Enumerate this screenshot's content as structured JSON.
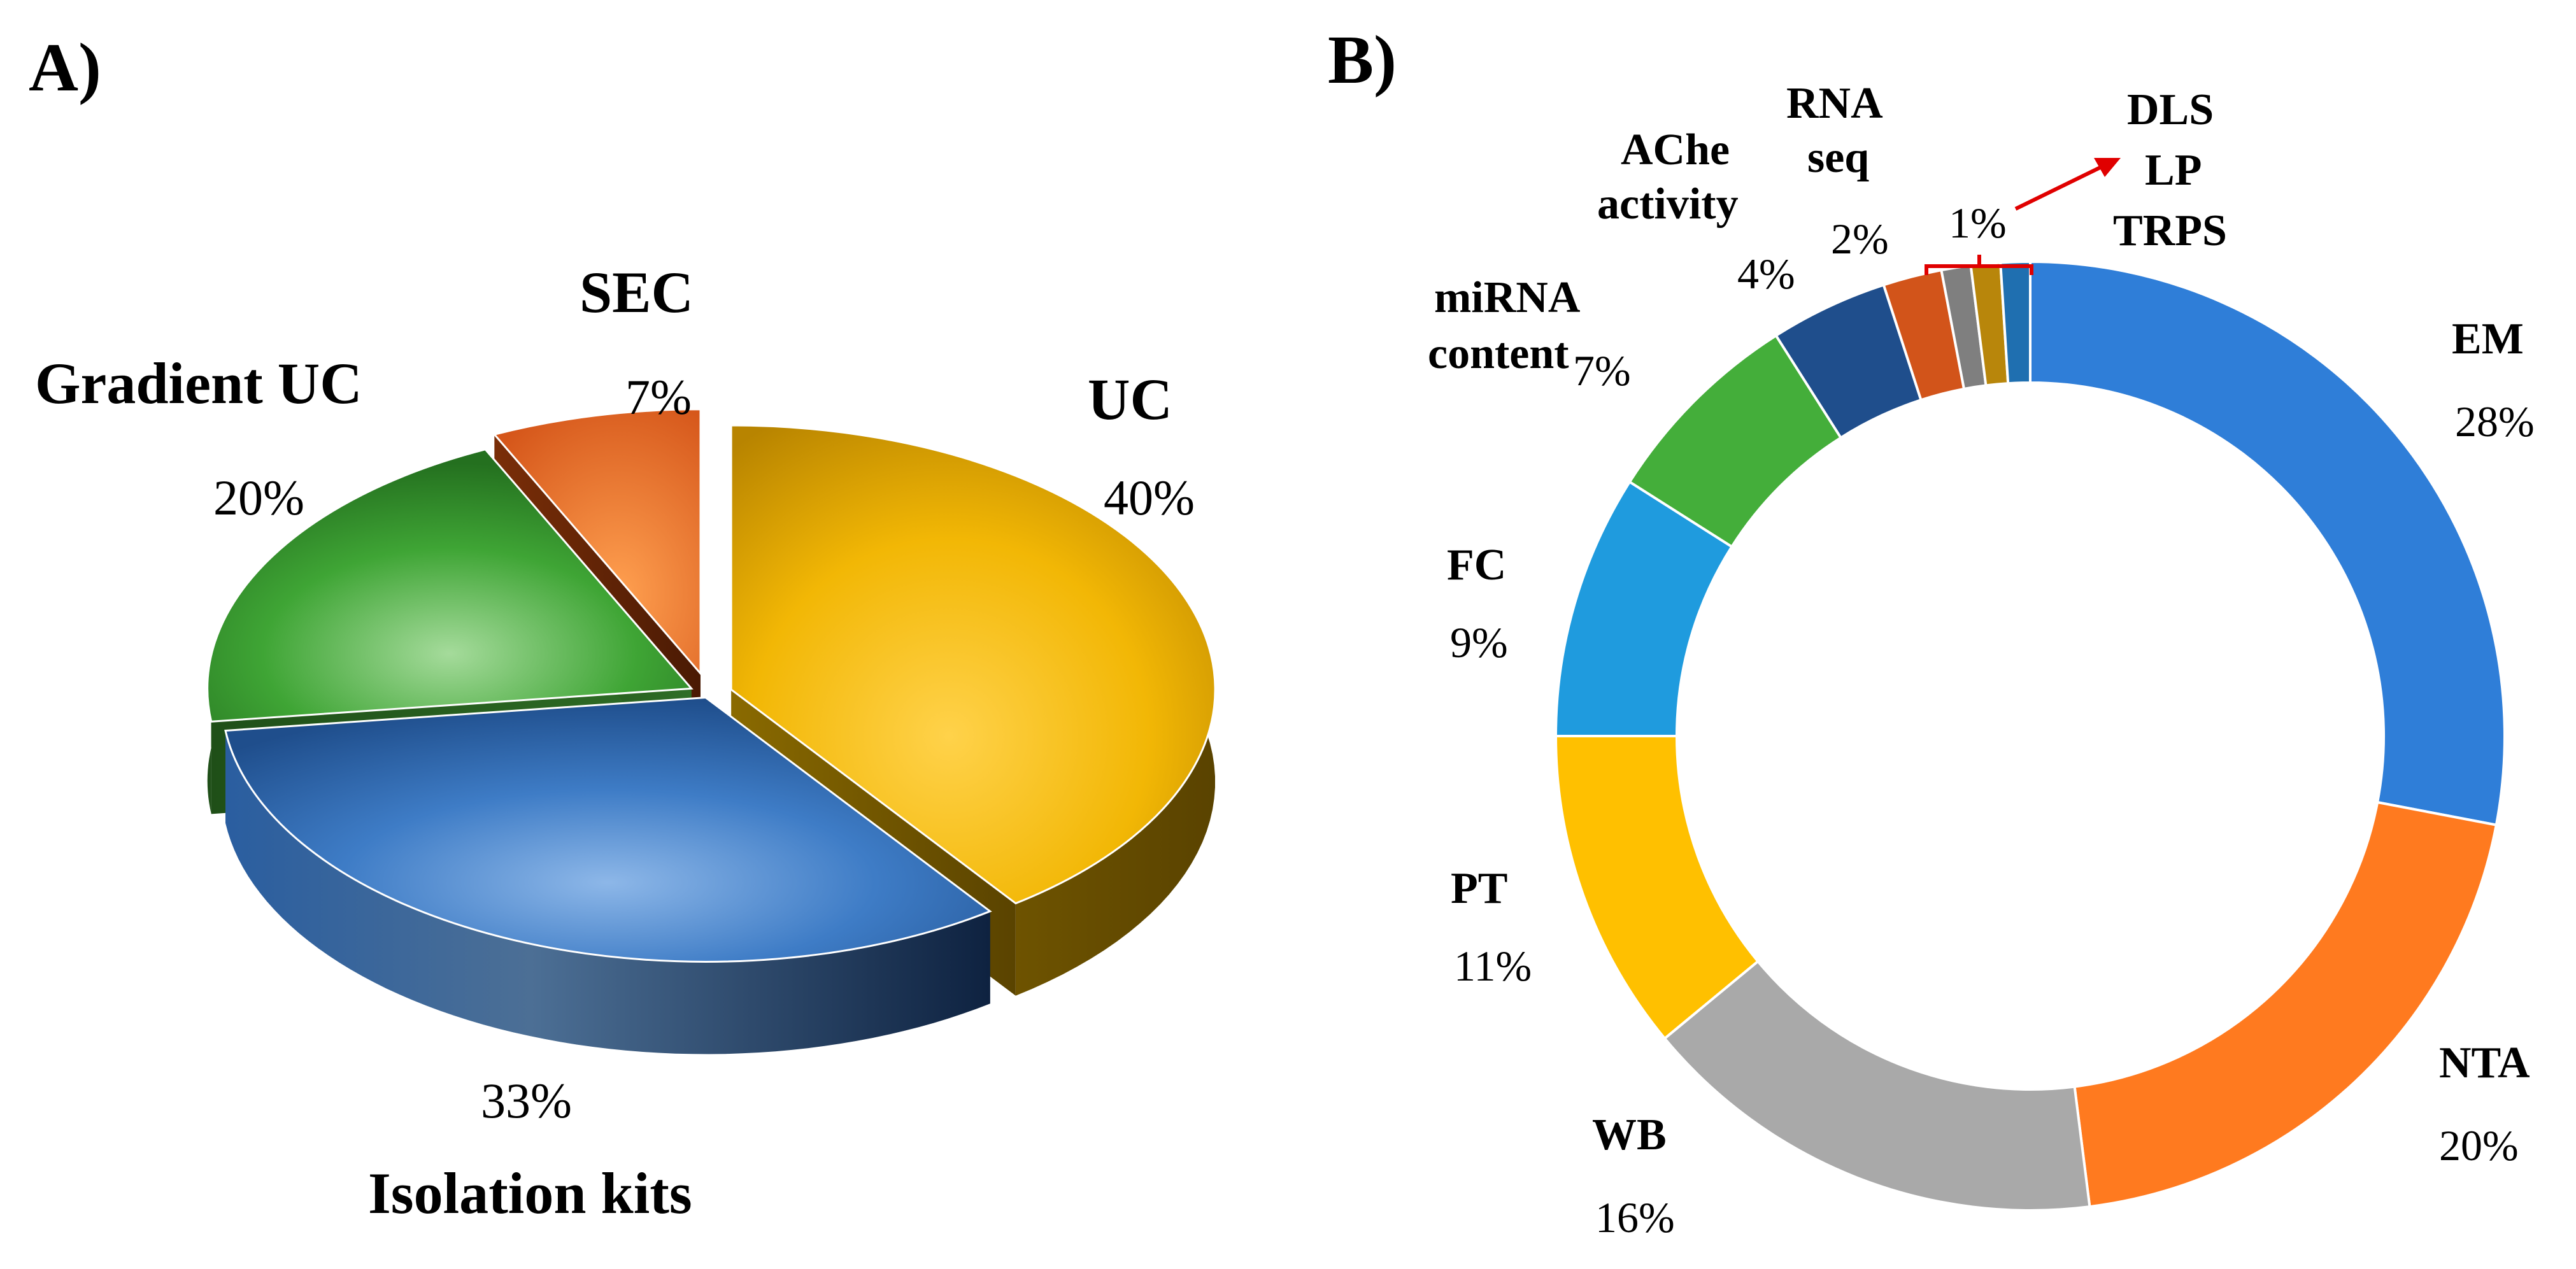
{
  "chart_data": [
    {
      "panel_label": "A)",
      "type": "pie",
      "title": "",
      "slices": [
        {
          "label": "UC",
          "value": 40,
          "display": "40%",
          "color": "#F2B705"
        },
        {
          "label": "Isolation kits",
          "value": 33,
          "display": "33%",
          "color": "#2E6DB8"
        },
        {
          "label": "Gradient UC",
          "value": 20,
          "display": "20%",
          "color": "#3FA535"
        },
        {
          "label": "SEC",
          "value": 7,
          "display": "7%",
          "color": "#F0782A"
        }
      ]
    },
    {
      "panel_label": "B)",
      "type": "pie",
      "variant": "donut",
      "title": "",
      "slices": [
        {
          "label": "EM",
          "value": 28,
          "display": "28%",
          "color": "#2F7ED8"
        },
        {
          "label": "NTA",
          "value": 20,
          "display": "20%",
          "color": "#FF7A1F"
        },
        {
          "label": "WB",
          "value": 16,
          "display": "16%",
          "color": "#A9A9A9"
        },
        {
          "label": "PT",
          "value": 11,
          "display": "11%",
          "color": "#FFC000"
        },
        {
          "label": "FC",
          "value": 9,
          "display": "9%",
          "color": "#1F9BDE"
        },
        {
          "label": "miRNA content",
          "value": 7,
          "display": "7%",
          "color": "#44AE3A"
        },
        {
          "label": "AChe activity",
          "value": 4,
          "display": "4%",
          "color": "#1F4E8C"
        },
        {
          "label": "RNA seq",
          "value": 2,
          "display": "2%",
          "color": "#D2541A"
        },
        {
          "label": "TRPS",
          "value": 1,
          "display": "",
          "color": "#7F7F7F"
        },
        {
          "label": "LP",
          "value": 1,
          "display": "",
          "color": "#B8860B"
        },
        {
          "label": "DLS",
          "value": 1,
          "display": "",
          "color": "#1F6FB0"
        }
      ],
      "grouped_annotation": {
        "display": "1%",
        "labels": [
          "DLS",
          "LP",
          "TRPS"
        ],
        "arrow_color": "#E00000"
      }
    }
  ]
}
